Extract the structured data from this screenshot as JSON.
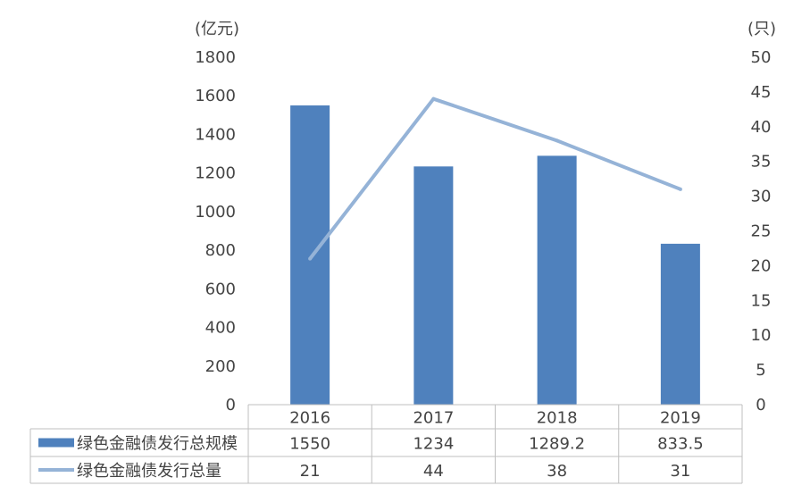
{
  "chart_data": {
    "type": "bar",
    "categories": [
      "2016",
      "2017",
      "2018",
      "2019"
    ],
    "y_left": {
      "unit_label": "(亿元)",
      "ylim": [
        0,
        1800
      ],
      "ticks": [
        "0",
        "200",
        "400",
        "600",
        "800",
        "1000",
        "1200",
        "1400",
        "1600",
        "1800"
      ]
    },
    "y_right": {
      "unit_label": "(只)",
      "ylim": [
        0,
        50
      ],
      "ticks": [
        "0",
        "5",
        "10",
        "15",
        "20",
        "25",
        "30",
        "35",
        "40",
        "45",
        "50"
      ]
    },
    "series": [
      {
        "name": "绿色金融债发行总规模",
        "kind": "bar",
        "axis": "left",
        "color": "#4f81bd",
        "values": [
          1550,
          1234,
          1289.2,
          833.5
        ],
        "value_labels": [
          "1550",
          "1234",
          "1289.2",
          "833.5"
        ]
      },
      {
        "name": "绿色金融债发行总量",
        "kind": "line",
        "axis": "right",
        "color": "#95b3d7",
        "values": [
          21,
          44,
          38,
          31
        ],
        "value_labels": [
          "21",
          "44",
          "38",
          "31"
        ]
      }
    ],
    "data_table": true,
    "grid": false,
    "legend": "data-table"
  }
}
